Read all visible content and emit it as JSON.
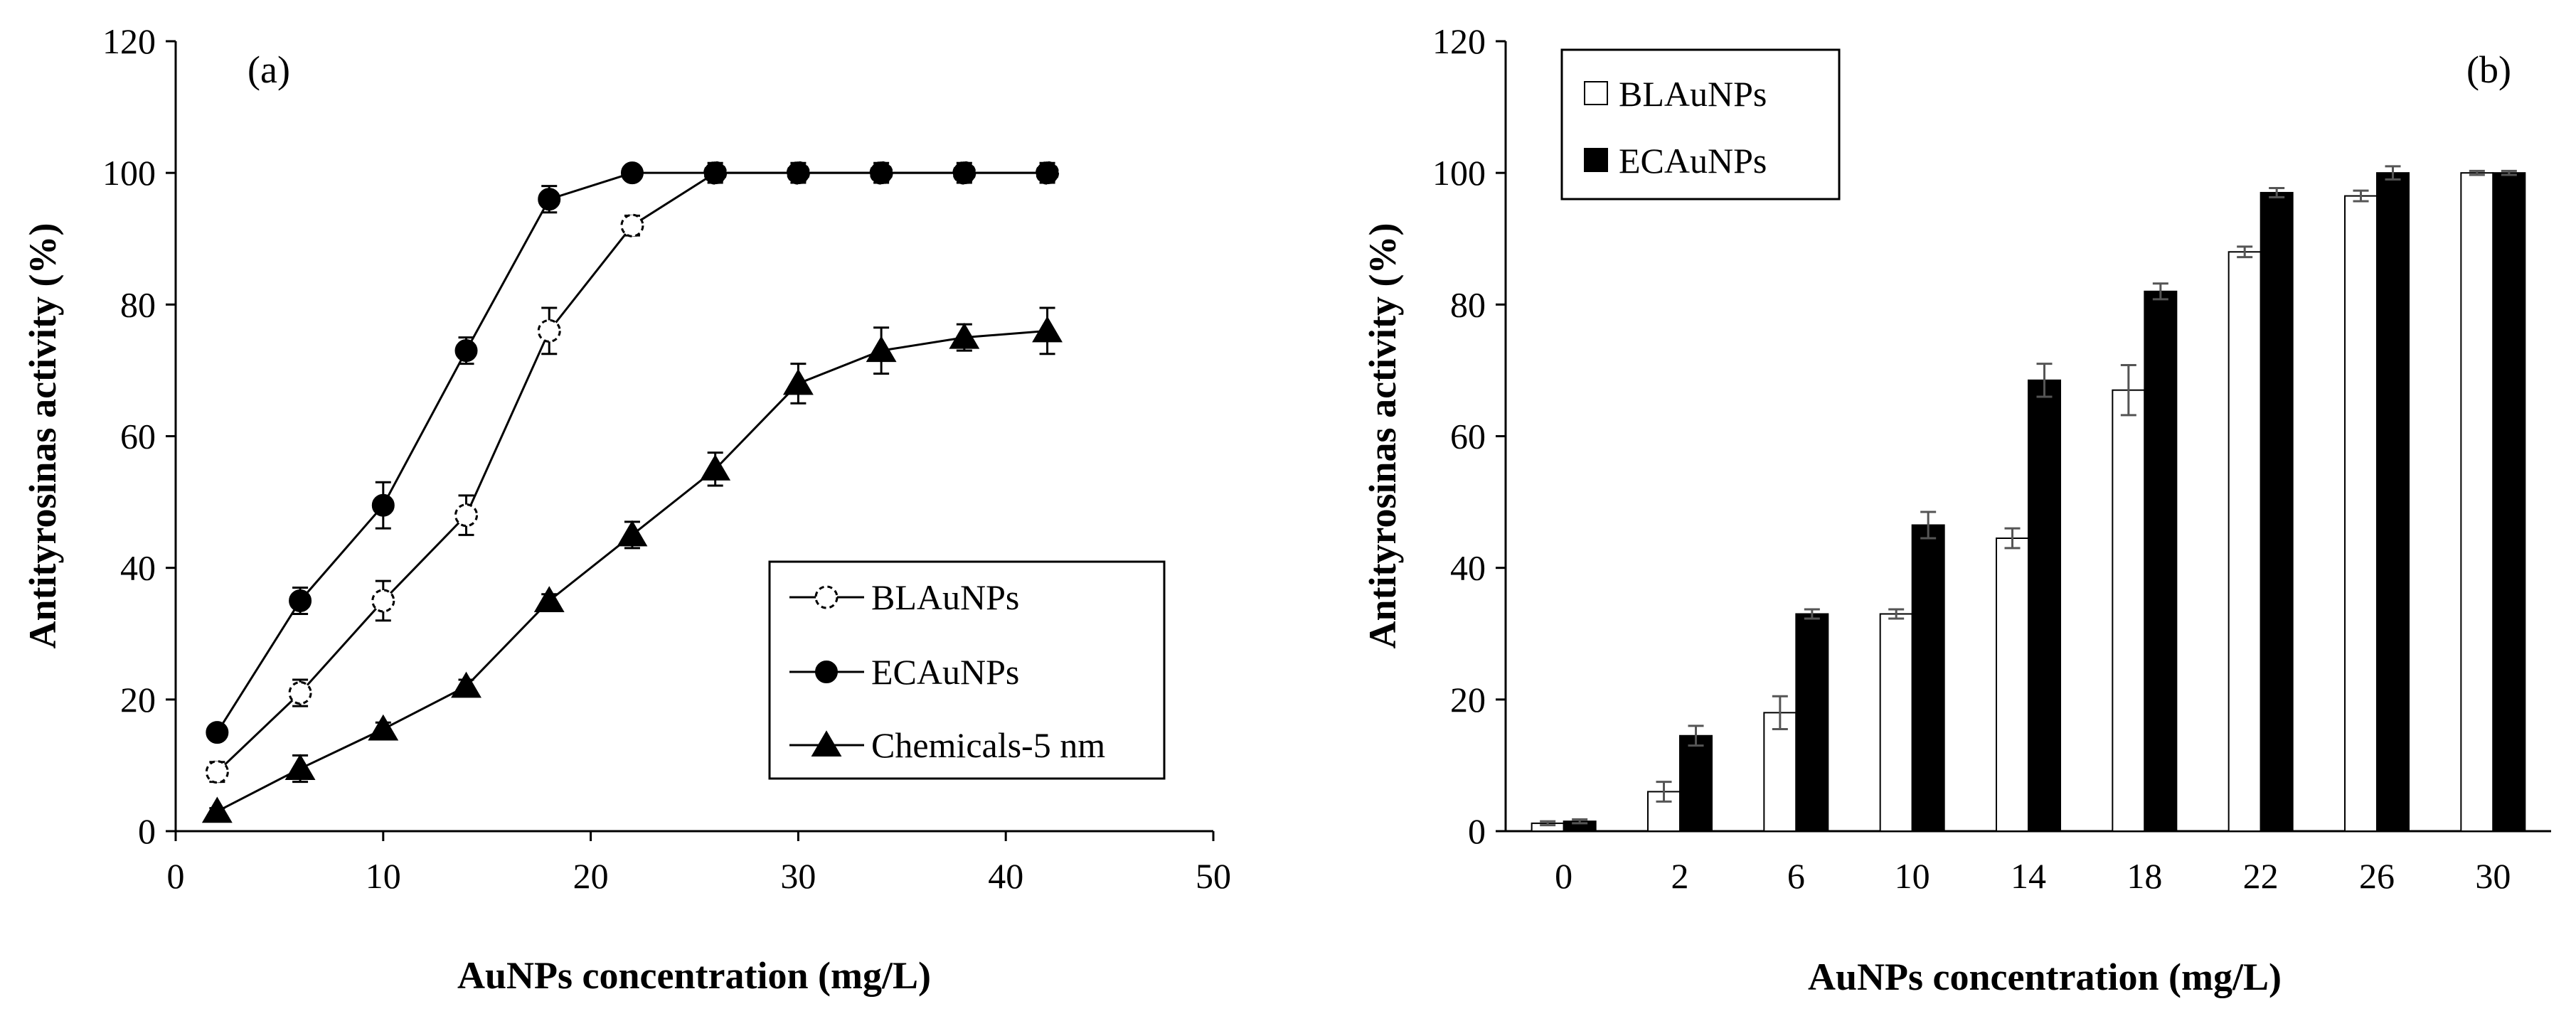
{
  "chart_data": [
    {
      "type": "line",
      "panel_label": "(a)",
      "xlabel": "AuNPs concentration (mg/L)",
      "ylabel": "Antityrosinas activity (%)",
      "xlim": [
        0,
        50
      ],
      "ylim": [
        0,
        120
      ],
      "xticks": [
        "0",
        "10",
        "20",
        "30",
        "40",
        "50"
      ],
      "yticks": [
        "0",
        "20",
        "40",
        "60",
        "80",
        "100",
        "120"
      ],
      "legend_position": "lower-right",
      "series": [
        {
          "name": "BLAuNPs",
          "marker": "open-circle-dashed",
          "x": [
            2,
            6,
            10,
            14,
            18,
            22,
            26,
            30,
            34,
            38,
            42
          ],
          "values": [
            9,
            21,
            35,
            48,
            76,
            92,
            100,
            100,
            100,
            100,
            100
          ],
          "errors": [
            1.5,
            2,
            3,
            3,
            3.5,
            1.5,
            1,
            1,
            1,
            1,
            1
          ]
        },
        {
          "name": "ECAuNPs",
          "marker": "filled-circle",
          "x": [
            2,
            6,
            10,
            14,
            18,
            22,
            26,
            30,
            34,
            38,
            42
          ],
          "values": [
            15,
            35,
            49.5,
            73,
            96,
            100,
            100,
            100,
            100,
            100,
            100
          ],
          "errors": [
            1,
            2,
            3.5,
            2,
            2,
            1,
            1.5,
            1.5,
            1.5,
            1.5,
            1.5
          ]
        },
        {
          "name": "Chemicals-5 nm",
          "marker": "filled-triangle",
          "x": [
            2,
            6,
            10,
            14,
            18,
            22,
            26,
            30,
            34,
            38,
            42
          ],
          "values": [
            3,
            9.5,
            15.5,
            22,
            35,
            45,
            55,
            68,
            73,
            75,
            76
          ],
          "errors": [
            0.5,
            2,
            1,
            1,
            1,
            2,
            2.5,
            3,
            3.5,
            2,
            3.5
          ]
        }
      ]
    },
    {
      "type": "bar",
      "panel_label": "(b)",
      "xlabel": "AuNPs concentration (mg/L)",
      "ylabel": "Antityrosinas activity (%)",
      "ylim": [
        0,
        120
      ],
      "yticks": [
        "0",
        "20",
        "40",
        "60",
        "80",
        "100",
        "120"
      ],
      "categories": [
        "0",
        "2",
        "6",
        "10",
        "14",
        "18",
        "22",
        "26",
        "30"
      ],
      "legend_position": "top-left",
      "series": [
        {
          "name": "BLAuNPs",
          "fill": "#ffffff",
          "values": [
            1.2,
            6,
            18,
            33,
            44.5,
            67,
            88,
            96.5,
            100
          ],
          "errors": [
            0.3,
            1.5,
            2.5,
            0.7,
            1.5,
            3.8,
            0.8,
            0.8,
            0.3
          ]
        },
        {
          "name": "ECAuNPs",
          "fill": "#000000",
          "values": [
            1.5,
            14.5,
            33,
            46.5,
            68.5,
            82,
            97,
            100,
            100
          ],
          "errors": [
            0.3,
            1.5,
            0.7,
            2,
            2.5,
            1.2,
            0.7,
            1,
            0.3
          ]
        }
      ]
    }
  ]
}
